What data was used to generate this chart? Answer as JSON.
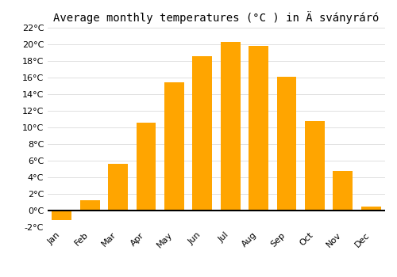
{
  "months": [
    "Jan",
    "Feb",
    "Mar",
    "Apr",
    "May",
    "Jun",
    "Jul",
    "Aug",
    "Sep",
    "Oct",
    "Nov",
    "Dec"
  ],
  "values": [
    -1.1,
    1.2,
    5.6,
    10.6,
    15.4,
    18.6,
    20.3,
    19.8,
    16.1,
    10.8,
    4.8,
    0.5
  ],
  "bar_color": "#FFA500",
  "title": "Average monthly temperatures (°C ) in Ä sványráró",
  "ylim": [
    -2,
    22
  ],
  "ytick_step": 2,
  "background_color": "#ffffff",
  "grid_color": "#e0e0e0",
  "title_fontsize": 10,
  "bar_width": 0.7
}
